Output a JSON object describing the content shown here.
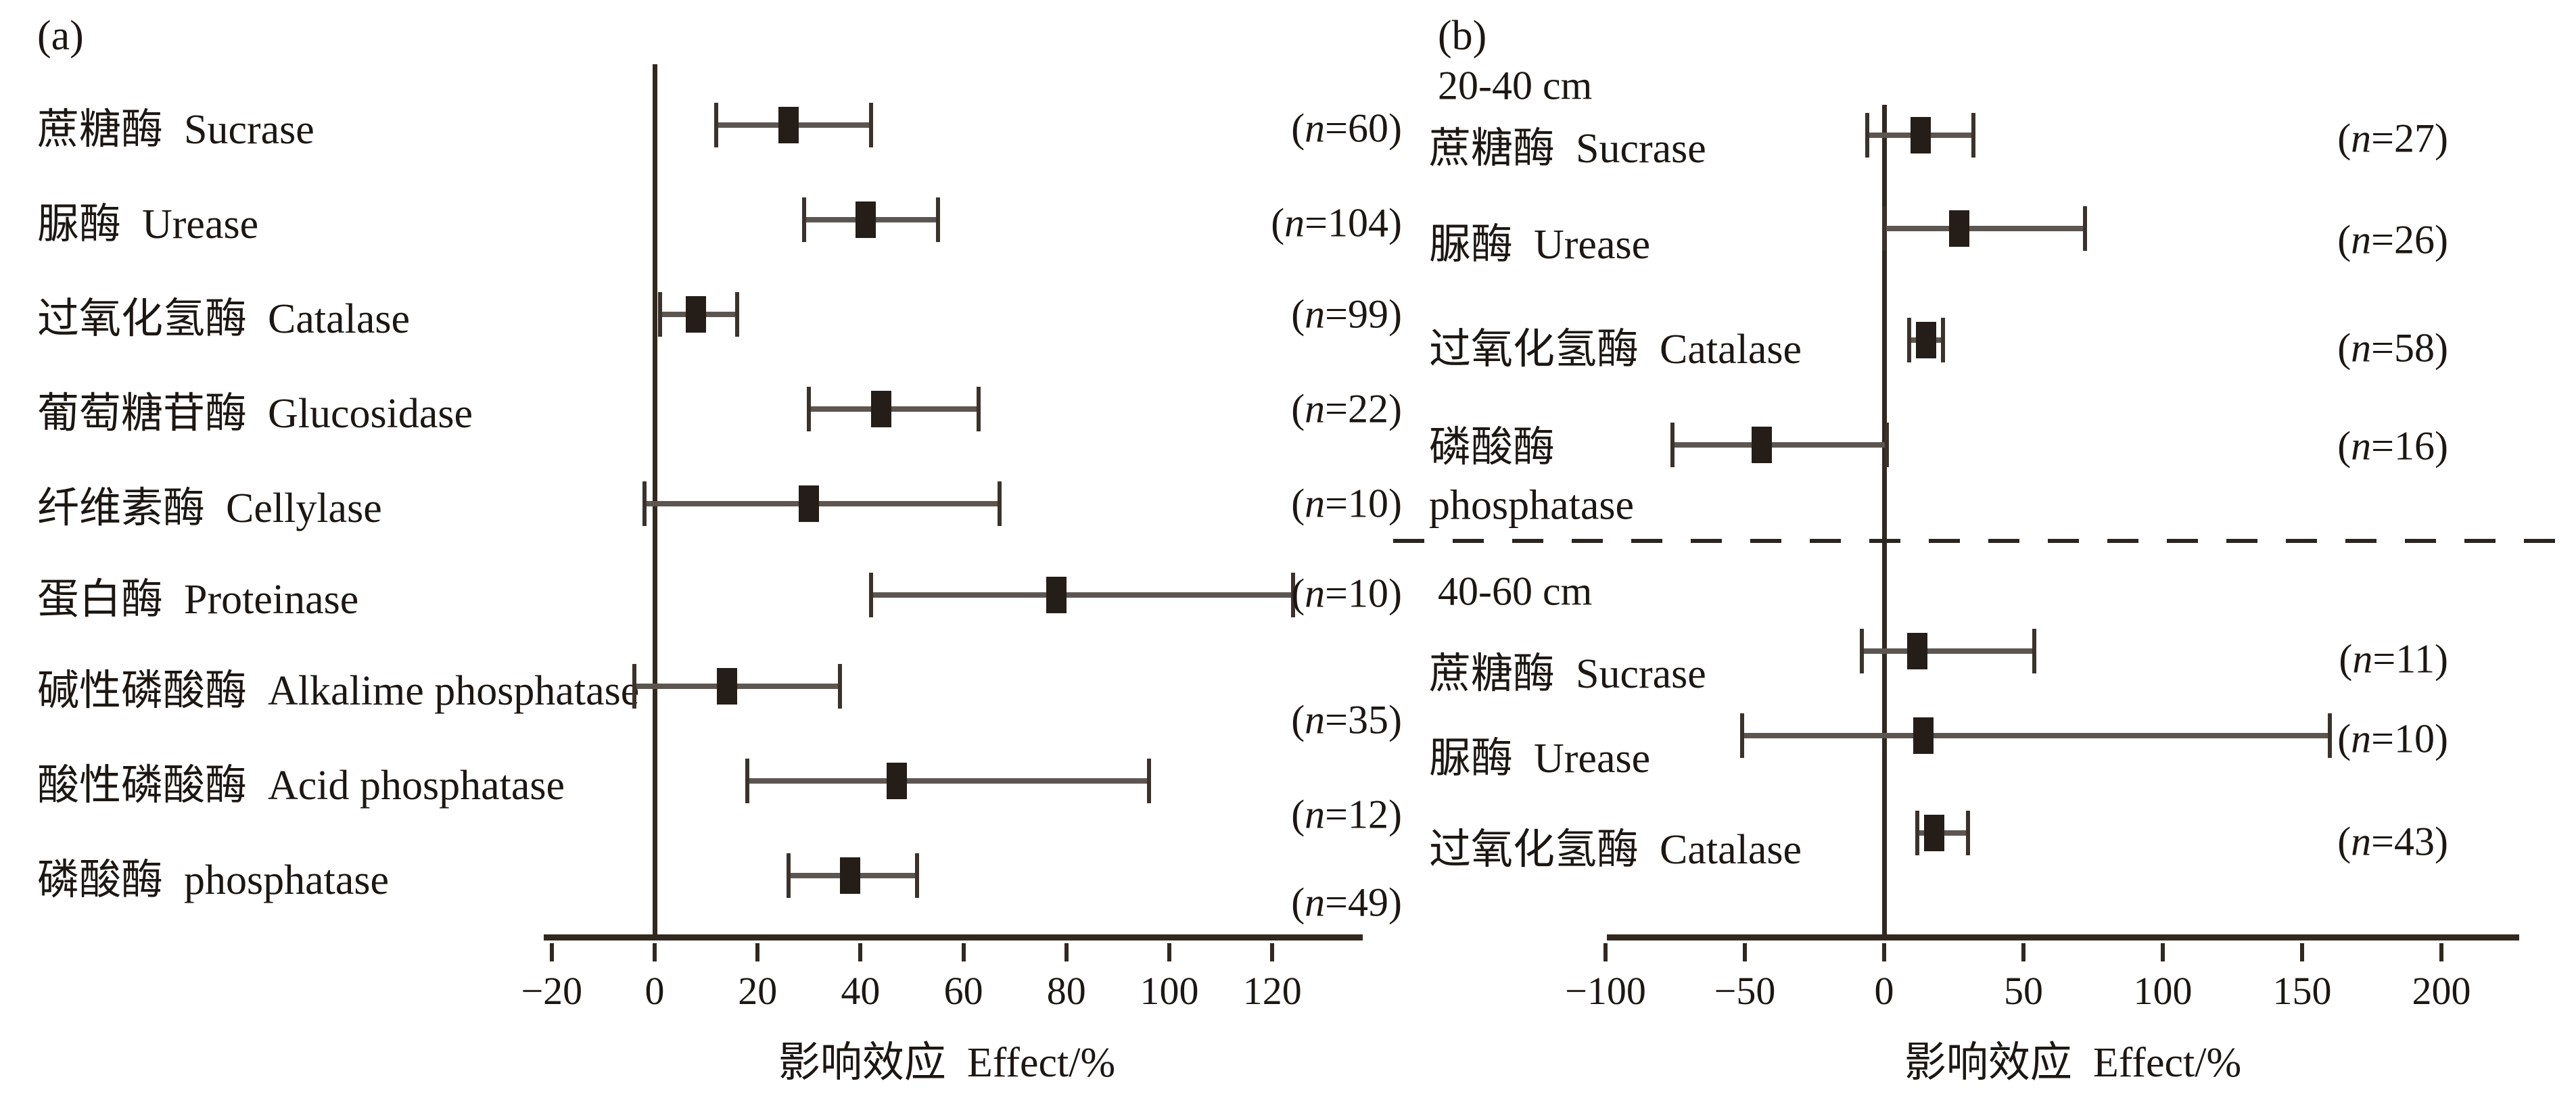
{
  "chart_data": [
    {
      "type": "scatter",
      "subtype": "forest-plot-mean-with-ci",
      "panel_tag": "(a)",
      "xlabel": "影响效应  Effect/%",
      "xlim": [
        -30,
        137
      ],
      "xticks": [
        -20,
        0,
        20,
        40,
        60,
        80,
        100,
        120
      ],
      "zero_reference_line": true,
      "grid": false,
      "rows": [
        {
          "label": "蔗糖酶  Sucrase",
          "n": 60,
          "effect": 26,
          "ci_low": 12,
          "ci_high": 42
        },
        {
          "label": "脲酶  Urease",
          "n": 104,
          "effect": 41,
          "ci_low": 29,
          "ci_high": 55
        },
        {
          "label": "过氧化氢酶  Catalase",
          "n": 99,
          "effect": 8,
          "ci_low": 1,
          "ci_high": 16
        },
        {
          "label": "葡萄糖苷酶  Glucosidase",
          "n": 22,
          "effect": 44,
          "ci_low": 30,
          "ci_high": 63
        },
        {
          "label": "纤维素酶  Cellylase",
          "n": 10,
          "effect": 30,
          "ci_low": -2,
          "ci_high": 67
        },
        {
          "label": "蛋白酶  Proteinase",
          "n": 10,
          "effect": 78,
          "ci_low": 42,
          "ci_high": 124
        },
        {
          "label": "碱性磷酸酶  Alkalime phosphatase",
          "n": 35,
          "effect": 14,
          "ci_low": -4,
          "ci_high": 36
        },
        {
          "label": "酸性磷酸酶  Acid phosphatase",
          "n": 12,
          "effect": 47,
          "ci_low": 18,
          "ci_high": 96
        },
        {
          "label": "磷酸酶  phosphatase",
          "n": 49,
          "effect": 38,
          "ci_low": 26,
          "ci_high": 51
        }
      ]
    },
    {
      "type": "scatter",
      "subtype": "forest-plot-mean-with-ci",
      "panel_tag": "(b)",
      "xlabel": "影响效应  Effect/%",
      "xlim": [
        -100,
        228
      ],
      "xticks": [
        -100,
        -50,
        0,
        50,
        100,
        150,
        200
      ],
      "zero_reference_line": true,
      "grid": false,
      "group_divider": "dashed",
      "groups": [
        {
          "header": "20-40 cm",
          "rows": [
            {
              "label": "蔗糖酶  Sucrase",
              "n": 27,
              "effect": 13,
              "ci_low": -6,
              "ci_high": 32
            },
            {
              "label": "脲酶  Urease",
              "n": 26,
              "effect": 27,
              "ci_low": 0,
              "ci_high": 72
            },
            {
              "label": "过氧化氢酶  Catalase",
              "n": 58,
              "effect": 15,
              "ci_low": 9,
              "ci_high": 21
            },
            {
              "label": "磷酸酶",
              "label2": "phosphatase",
              "n": 16,
              "effect": -44,
              "ci_low": -76,
              "ci_high": 1
            }
          ]
        },
        {
          "header": "40-60 cm",
          "rows": [
            {
              "label": "蔗糖酶  Sucrase",
              "n": 11,
              "effect": 12,
              "ci_low": -8,
              "ci_high": 54
            },
            {
              "label": "脲酶  Urease",
              "n": 10,
              "effect": 14,
              "ci_low": -51,
              "ci_high": 160
            },
            {
              "label": "过氧化氢酶  Catalase",
              "n": 43,
              "effect": 18,
              "ci_low": 12,
              "ci_high": 30
            }
          ]
        }
      ]
    }
  ],
  "colors": {
    "ink": "#241d18",
    "error_bar_line": "#5d5550",
    "axis": "#31281f"
  }
}
